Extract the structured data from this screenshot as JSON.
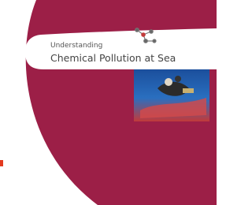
{
  "header": {
    "subtitle": "Understanding",
    "title": "Chemical Pollution at Sea"
  }
}
